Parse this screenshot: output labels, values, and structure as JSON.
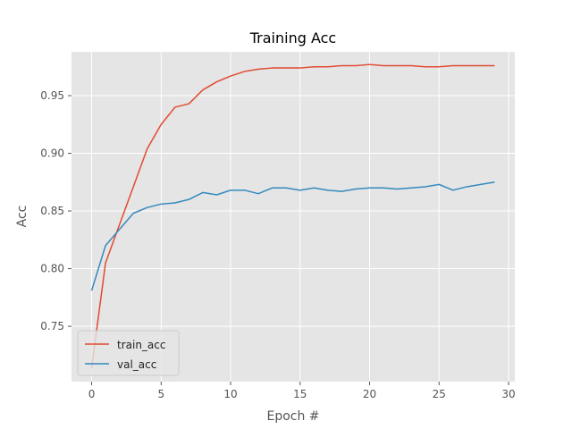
{
  "chart_data": {
    "type": "line",
    "title": "Training Acc",
    "xlabel": "Epoch #",
    "ylabel": "Acc",
    "xlim": [
      -1.45,
      30.45
    ],
    "ylim": [
      0.702,
      0.988
    ],
    "xticks": [
      0,
      5,
      10,
      15,
      20,
      25,
      30
    ],
    "yticks": [
      0.75,
      0.8,
      0.85,
      0.9,
      0.95
    ],
    "ytick_labels": [
      "0.75",
      "0.80",
      "0.85",
      "0.90",
      "0.95"
    ],
    "grid": true,
    "legend_position": "lower-left",
    "series": [
      {
        "name": "train_acc",
        "color": "#E24A33",
        "x": [
          0,
          1,
          2,
          3,
          4,
          5,
          6,
          7,
          8,
          9,
          10,
          11,
          12,
          13,
          14,
          15,
          16,
          17,
          18,
          19,
          20,
          21,
          22,
          23,
          24,
          25,
          26,
          27,
          28,
          29
        ],
        "values": [
          0.714,
          0.805,
          0.838,
          0.871,
          0.904,
          0.925,
          0.94,
          0.943,
          0.955,
          0.962,
          0.967,
          0.971,
          0.973,
          0.974,
          0.974,
          0.974,
          0.975,
          0.975,
          0.976,
          0.976,
          0.977,
          0.976,
          0.976,
          0.976,
          0.975,
          0.975,
          0.976,
          0.976,
          0.976,
          0.976
        ]
      },
      {
        "name": "val_acc",
        "color": "#348ABD",
        "x": [
          0,
          1,
          2,
          3,
          4,
          5,
          6,
          7,
          8,
          9,
          10,
          11,
          12,
          13,
          14,
          15,
          16,
          17,
          18,
          19,
          20,
          21,
          22,
          23,
          24,
          25,
          26,
          27,
          28,
          29
        ],
        "values": [
          0.781,
          0.82,
          0.834,
          0.848,
          0.853,
          0.856,
          0.857,
          0.86,
          0.866,
          0.864,
          0.868,
          0.868,
          0.865,
          0.87,
          0.87,
          0.868,
          0.87,
          0.868,
          0.867,
          0.869,
          0.87,
          0.87,
          0.869,
          0.87,
          0.871,
          0.873,
          0.868,
          0.871,
          0.873,
          0.875
        ]
      }
    ]
  }
}
